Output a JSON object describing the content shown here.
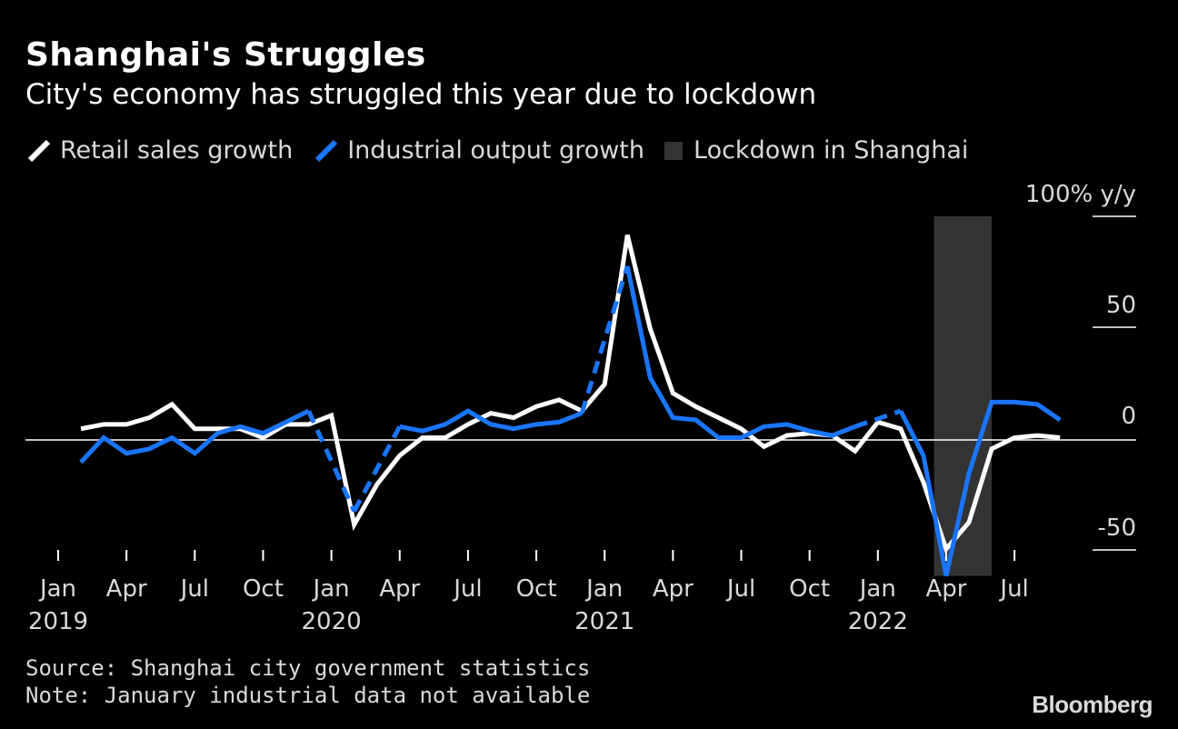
{
  "title": "Shanghai's Struggles",
  "subtitle": "City's economy has struggled this year due to lockdown",
  "legend": {
    "retail": "Retail sales growth",
    "industrial": "Industrial output growth",
    "lockdown": "Lockdown in Shanghai"
  },
  "source": "Source: Shanghai city government statistics",
  "note": "Note: January industrial data not available",
  "brand": "Bloomberg",
  "colors": {
    "retail": "#ffffff",
    "industrial": "#1a75ff",
    "lockdown": "#333333",
    "background": "#000000"
  },
  "chart_data": {
    "type": "line",
    "y_unit_label": "100% y/y",
    "ylim": [
      -60,
      100
    ],
    "y_ticks": [
      {
        "value": 100,
        "label": "100%"
      },
      {
        "value": 50,
        "label": "50"
      },
      {
        "value": 0,
        "label": "0"
      },
      {
        "value": -50,
        "label": "-50"
      }
    ],
    "x_ticks": [
      {
        "date": "2019-01",
        "month": "Jan",
        "year": "2019"
      },
      {
        "date": "2019-04",
        "month": "Apr",
        "year": ""
      },
      {
        "date": "2019-07",
        "month": "Jul",
        "year": ""
      },
      {
        "date": "2019-10",
        "month": "Oct",
        "year": ""
      },
      {
        "date": "2020-01",
        "month": "Jan",
        "year": "2020"
      },
      {
        "date": "2020-04",
        "month": "Apr",
        "year": ""
      },
      {
        "date": "2020-07",
        "month": "Jul",
        "year": ""
      },
      {
        "date": "2020-10",
        "month": "Oct",
        "year": ""
      },
      {
        "date": "2021-01",
        "month": "Jan",
        "year": "2021"
      },
      {
        "date": "2021-04",
        "month": "Apr",
        "year": ""
      },
      {
        "date": "2021-07",
        "month": "Jul",
        "year": ""
      },
      {
        "date": "2021-10",
        "month": "Oct",
        "year": ""
      },
      {
        "date": "2022-01",
        "month": "Jan",
        "year": "2022"
      },
      {
        "date": "2022-04",
        "month": "Apr",
        "year": ""
      },
      {
        "date": "2022-07",
        "month": "Jul",
        "year": ""
      }
    ],
    "lockdown_period": {
      "start": "2022-03-15",
      "end": "2022-05-31"
    },
    "series": [
      {
        "name": "Retail sales growth",
        "points": [
          [
            "2019-02",
            5
          ],
          [
            "2019-03",
            7
          ],
          [
            "2019-04",
            7
          ],
          [
            "2019-05",
            10
          ],
          [
            "2019-06",
            16
          ],
          [
            "2019-07",
            5
          ],
          [
            "2019-08",
            5
          ],
          [
            "2019-09",
            5
          ],
          [
            "2019-10",
            1
          ],
          [
            "2019-11",
            7
          ],
          [
            "2019-12",
            7
          ],
          [
            "2020-01",
            11
          ],
          [
            "2020-02",
            -38
          ],
          [
            "2020-03",
            -20
          ],
          [
            "2020-04",
            -7
          ],
          [
            "2020-05",
            1
          ],
          [
            "2020-06",
            1
          ],
          [
            "2020-07",
            7
          ],
          [
            "2020-08",
            12
          ],
          [
            "2020-09",
            10
          ],
          [
            "2020-10",
            15
          ],
          [
            "2020-11",
            18
          ],
          [
            "2020-12",
            13
          ],
          [
            "2021-01",
            25
          ],
          [
            "2021-02",
            92
          ],
          [
            "2021-03",
            50
          ],
          [
            "2021-04",
            21
          ],
          [
            "2021-05",
            15
          ],
          [
            "2021-06",
            10
          ],
          [
            "2021-07",
            5
          ],
          [
            "2021-08",
            -3
          ],
          [
            "2021-09",
            2
          ],
          [
            "2021-10",
            3
          ],
          [
            "2021-11",
            2
          ],
          [
            "2021-12",
            -5
          ],
          [
            "2022-01",
            8
          ],
          [
            "2022-02",
            5
          ],
          [
            "2022-03",
            -19
          ],
          [
            "2022-04",
            -49
          ],
          [
            "2022-05",
            -37
          ],
          [
            "2022-06",
            -4
          ],
          [
            "2022-07",
            1
          ],
          [
            "2022-08",
            2
          ],
          [
            "2022-09",
            1
          ]
        ]
      },
      {
        "name": "Industrial output growth",
        "points": [
          [
            "2019-02",
            -10
          ],
          [
            "2019-03",
            1
          ],
          [
            "2019-04",
            -6
          ],
          [
            "2019-05",
            -4
          ],
          [
            "2019-06",
            1
          ],
          [
            "2019-07",
            -6
          ],
          [
            "2019-08",
            3
          ],
          [
            "2019-09",
            6
          ],
          [
            "2019-10",
            3
          ],
          [
            "2019-11",
            8
          ],
          [
            "2019-12",
            13
          ],
          [
            "2020-01",
            null
          ],
          [
            "2020-02",
            -32
          ],
          [
            "2020-03",
            null
          ],
          [
            "2020-04",
            6
          ],
          [
            "2020-05",
            4
          ],
          [
            "2020-06",
            7
          ],
          [
            "2020-07",
            13
          ],
          [
            "2020-08",
            7
          ],
          [
            "2020-09",
            5
          ],
          [
            "2020-10",
            7
          ],
          [
            "2020-11",
            8
          ],
          [
            "2020-12",
            12
          ],
          [
            "2021-01",
            null
          ],
          [
            "2021-02",
            78
          ],
          [
            "2021-03",
            28
          ],
          [
            "2021-04",
            10
          ],
          [
            "2021-05",
            9
          ],
          [
            "2021-06",
            1
          ],
          [
            "2021-07",
            1
          ],
          [
            "2021-08",
            6
          ],
          [
            "2021-09",
            7
          ],
          [
            "2021-10",
            4
          ],
          [
            "2021-11",
            2
          ],
          [
            "2021-12",
            6
          ],
          [
            "2022-01",
            null
          ],
          [
            "2022-02",
            13
          ],
          [
            "2022-03",
            -7
          ],
          [
            "2022-04",
            -61
          ],
          [
            "2022-05",
            -15
          ],
          [
            "2022-06",
            17
          ],
          [
            "2022-07",
            17
          ],
          [
            "2022-08",
            16
          ],
          [
            "2022-09",
            9
          ]
        ]
      }
    ]
  }
}
